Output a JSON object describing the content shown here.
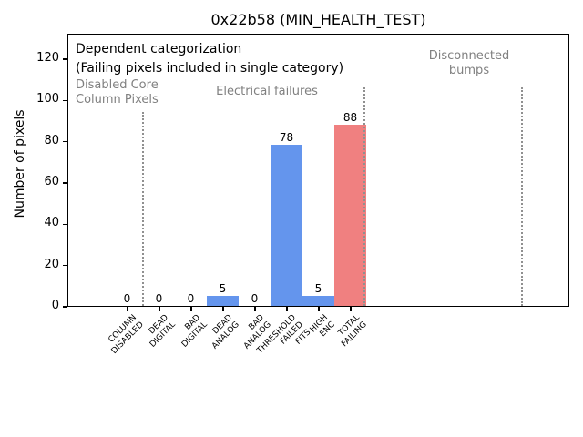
{
  "title": "0x22b58 (MIN_HEALTH_TEST)",
  "ylabel": "Number of pixels",
  "annotations": {
    "dependent_line1": "Dependent categorization",
    "dependent_line2": "(Failing pixels included in single category)",
    "section_disabled": "Disabled Core\nColumn Pixels",
    "section_electrical": "Electrical failures",
    "section_disconnected": "Disconnected\nbumps"
  },
  "colors": {
    "bar_blue": "#6495ED",
    "bar_red": "#F08080",
    "section_text": "#808080",
    "divider": "#909090",
    "axis": "#000000"
  },
  "chart_data": {
    "type": "bar",
    "title": "0x22b58 (MIN_HEALTH_TEST)",
    "xlabel": "",
    "ylabel": "Number of pixels",
    "ylim": [
      0,
      132
    ],
    "yticks": [
      0,
      20,
      40,
      60,
      80,
      100,
      120
    ],
    "grid": false,
    "legend": null,
    "categories": [
      "COLUMN\nDISABLED",
      "DEAD\nDIGITAL",
      "BAD\nDIGITAL",
      "DEAD\nANALOG",
      "BAD\nANALOG",
      "THRESHOLD\nFAILED\nFITS",
      "HIGH\nENC",
      "TOTAL\nFAILING"
    ],
    "values": [
      0,
      0,
      0,
      5,
      0,
      78,
      5,
      88
    ],
    "value_labels": [
      "0",
      "0",
      "0",
      "5",
      "0",
      "78",
      "5",
      "88"
    ],
    "bar_colors": [
      "#6495ED",
      "#6495ED",
      "#6495ED",
      "#6495ED",
      "#6495ED",
      "#6495ED",
      "#6495ED",
      "#F08080"
    ],
    "section_annotations": [
      {
        "label": "Disabled Core\nColumn Pixels",
        "covers": [
          "COLUMN DISABLED"
        ]
      },
      {
        "label": "Electrical failures",
        "covers": [
          "DEAD DIGITAL",
          "BAD DIGITAL",
          "DEAD ANALOG",
          "BAD ANALOG",
          "THRESHOLD FAILED FITS",
          "HIGH ENC",
          "TOTAL FAILING"
        ]
      },
      {
        "label": "Disconnected bumps",
        "covers": []
      }
    ]
  }
}
